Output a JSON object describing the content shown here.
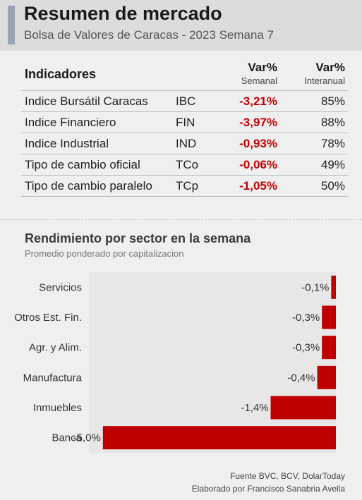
{
  "header": {
    "title": "Resumen de mercado",
    "subtitle": "Bolsa de Valores de Caracas - 2023 Semana 7"
  },
  "indicators": {
    "heading": "Indicadores",
    "col_weekly_big": "Var%",
    "col_weekly_small": "Semanal",
    "col_annual_big": "Var%",
    "col_annual_small": "Interanual",
    "rows": [
      {
        "name": "Indice Bursátil Caracas",
        "code": "IBC",
        "weekly": "-3,21%",
        "annual": "85%"
      },
      {
        "name": "Indice Financiero",
        "code": "FIN",
        "weekly": "-3,97%",
        "annual": "88%"
      },
      {
        "name": "Indice Industrial",
        "code": "IND",
        "weekly": "-0,93%",
        "annual": "78%"
      },
      {
        "name": "Tipo de cambio oficial",
        "code": "TCo",
        "weekly": "-0,06%",
        "annual": "49%"
      },
      {
        "name": "Tipo de cambio paralelo",
        "code": "TCp",
        "weekly": "-1,05%",
        "annual": "50%"
      }
    ]
  },
  "chart_data": {
    "type": "bar",
    "orientation": "horizontal",
    "title": "Rendimiento por sector en la semana",
    "subtitle": "Promedio ponderado por capitalizacion",
    "categories": [
      "Servicios",
      "Otros Est. Fin.",
      "Agr. y Alim.",
      "Manufactura",
      "Inmuebles",
      "Banca"
    ],
    "values": [
      -0.1,
      -0.3,
      -0.3,
      -0.4,
      -1.4,
      -5.0
    ],
    "value_labels": [
      "-0,1%",
      "-0,3%",
      "-0,3%",
      "-0,4%",
      "-1,4%",
      "-5,0%"
    ],
    "xlim": [
      -5.3,
      0
    ],
    "bar_color": "#c00000",
    "plot_background": "#e8e6e7",
    "grid": false,
    "legend": false
  },
  "footer": {
    "line1": "Fuente BVC, BCV, DolarToday",
    "line2": "Elaborado por Francisco Sanabria Avella"
  }
}
